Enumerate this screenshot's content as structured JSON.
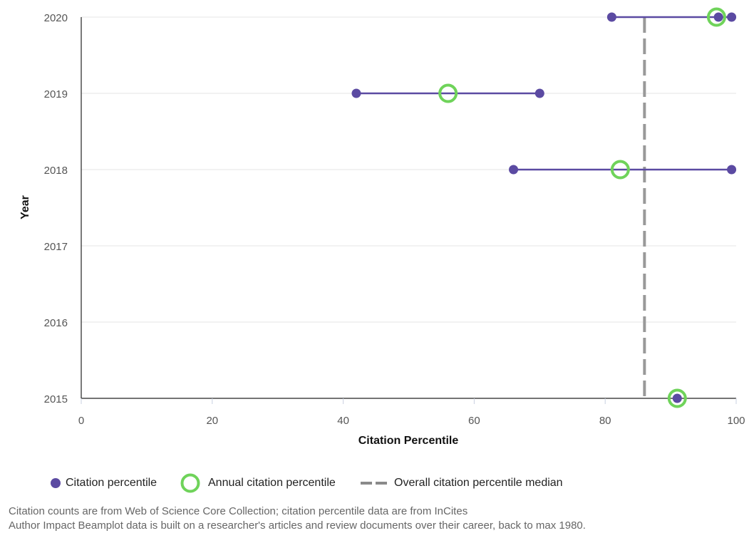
{
  "chart_data": {
    "type": "scatter",
    "xlabel": "Citation Percentile",
    "ylabel": "Year",
    "xlim": [
      0,
      100
    ],
    "ylim": [
      2015,
      2020
    ],
    "x_ticks": [
      "0",
      "20",
      "40",
      "60",
      "80",
      "100"
    ],
    "y_ticks": [
      "2015",
      "2016",
      "2017",
      "2018",
      "2019",
      "2020"
    ],
    "grid": "horizontal",
    "legend_placement": "bottom",
    "series": [
      {
        "name": "Citation percentile",
        "color": "#5b4aa2",
        "points": [
          {
            "year": 2020,
            "x": 81
          },
          {
            "year": 2020,
            "x": 97.3
          },
          {
            "year": 2020,
            "x": 99.3
          },
          {
            "year": 2019,
            "x": 42
          },
          {
            "year": 2019,
            "x": 70
          },
          {
            "year": 2018,
            "x": 66
          },
          {
            "year": 2018,
            "x": 99.3
          },
          {
            "year": 2015,
            "x": 91
          }
        ]
      },
      {
        "name": "Annual citation percentile",
        "color": "#6fd35a",
        "points": [
          {
            "year": 2020,
            "x": 97
          },
          {
            "year": 2019,
            "x": 56
          },
          {
            "year": 2018,
            "x": 82.3
          },
          {
            "year": 2015,
            "x": 91
          }
        ]
      },
      {
        "name": "Overall citation percentile median",
        "color": "#999999",
        "value": 86
      }
    ],
    "ranges": [
      {
        "year": 2020,
        "from": 81,
        "to": 99.3
      },
      {
        "year": 2019,
        "from": 42,
        "to": 70
      },
      {
        "year": 2018,
        "from": 66,
        "to": 99.3
      }
    ]
  },
  "legend": {
    "citation_percentile": "Citation percentile",
    "annual_citation_percentile": "Annual citation percentile",
    "overall_median": "Overall citation percentile median"
  },
  "footer": {
    "line1": "Citation counts are from Web of Science Core Collection; citation percentile data are from InCites",
    "line2": "Author Impact Beamplot data is built on a researcher's articles and review documents over their career, back to max 1980."
  }
}
